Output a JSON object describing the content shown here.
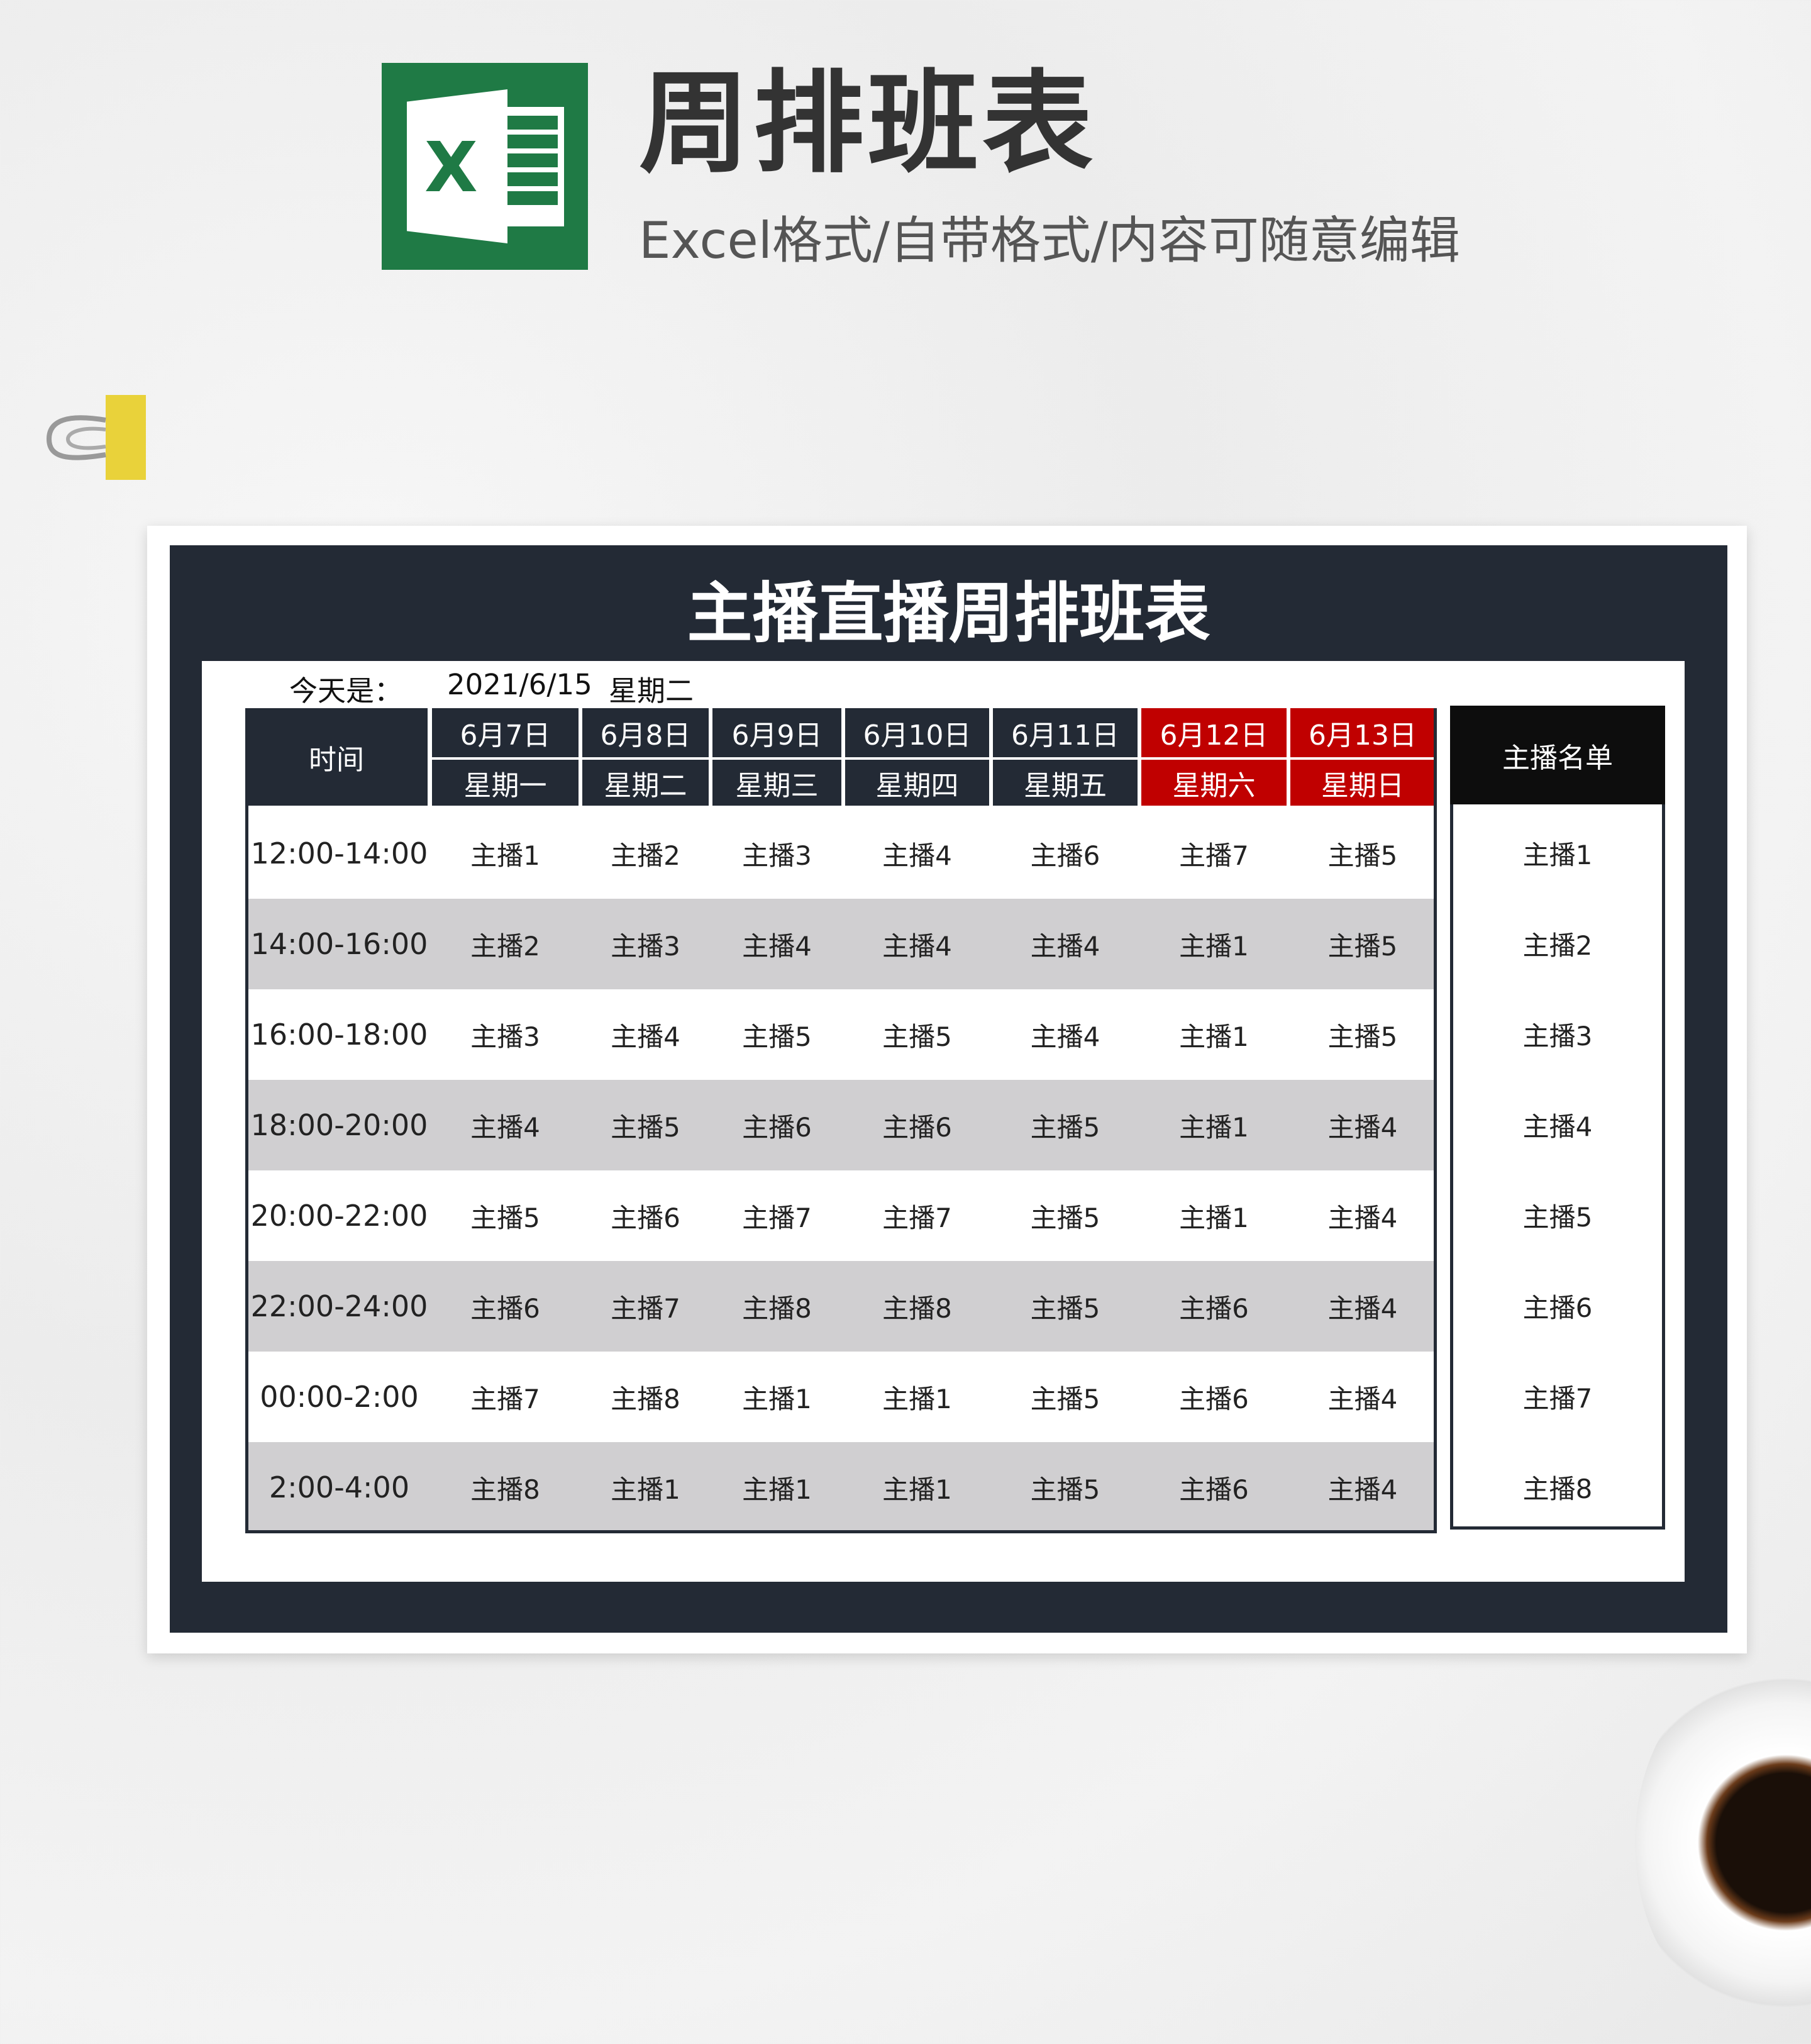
{
  "header": {
    "title": "周排班表",
    "subtitle": "Excel格式/自带格式/内容可随意编辑",
    "logo_letter": "X"
  },
  "sheet": {
    "title": "主播直播周排班表",
    "today_label": "今天是：",
    "today_date": "2021/6/15",
    "today_weekday": "星期二",
    "time_header": "时间",
    "colors": {
      "dark": "#232a35",
      "weekend": "#c00000",
      "alt_row": "#d0cfd1"
    },
    "days": [
      {
        "date": "6月7日",
        "weekday": "星期一",
        "weekend": false
      },
      {
        "date": "6月8日",
        "weekday": "星期二",
        "weekend": false
      },
      {
        "date": "6月9日",
        "weekday": "星期三",
        "weekend": false
      },
      {
        "date": "6月10日",
        "weekday": "星期四",
        "weekend": false
      },
      {
        "date": "6月11日",
        "weekday": "星期五",
        "weekend": false
      },
      {
        "date": "6月12日",
        "weekday": "星期六",
        "weekend": true
      },
      {
        "date": "6月13日",
        "weekday": "星期日",
        "weekend": true
      }
    ],
    "rows": [
      {
        "time": "12:00-14:00",
        "cells": [
          "主播1",
          "主播2",
          "主播3",
          "主播4",
          "主播6",
          "主播7",
          "主播5"
        ]
      },
      {
        "time": "14:00-16:00",
        "cells": [
          "主播2",
          "主播3",
          "主播4",
          "主播4",
          "主播4",
          "主播1",
          "主播5"
        ]
      },
      {
        "time": "16:00-18:00",
        "cells": [
          "主播3",
          "主播4",
          "主播5",
          "主播5",
          "主播4",
          "主播1",
          "主播5"
        ]
      },
      {
        "time": "18:00-20:00",
        "cells": [
          "主播4",
          "主播5",
          "主播6",
          "主播6",
          "主播5",
          "主播1",
          "主播4"
        ]
      },
      {
        "time": "20:00-22:00",
        "cells": [
          "主播5",
          "主播6",
          "主播7",
          "主播7",
          "主播5",
          "主播1",
          "主播4"
        ]
      },
      {
        "time": "22:00-24:00",
        "cells": [
          "主播6",
          "主播7",
          "主播8",
          "主播8",
          "主播5",
          "主播6",
          "主播4"
        ]
      },
      {
        "time": "00:00-2:00",
        "cells": [
          "主播7",
          "主播8",
          "主播1",
          "主播1",
          "主播5",
          "主播6",
          "主播4"
        ]
      },
      {
        "time": "2:00-4:00",
        "cells": [
          "主播8",
          "主播1",
          "主播1",
          "主播1",
          "主播5",
          "主播6",
          "主播4"
        ]
      }
    ],
    "roster_header": "主播名单",
    "roster": [
      "主播1",
      "主播2",
      "主播3",
      "主播4",
      "主播5",
      "主播6",
      "主播7",
      "主播8"
    ]
  }
}
